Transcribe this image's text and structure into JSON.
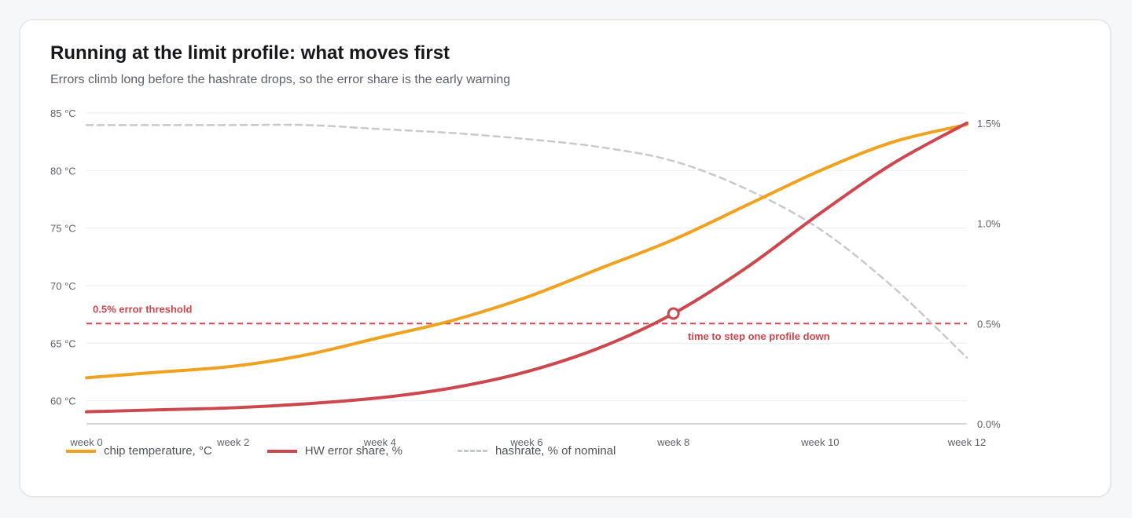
{
  "title": "Running at the limit profile: what moves first",
  "subtitle": "Errors climb long before the hashrate drops, so the error share is the early warning",
  "chart_data": {
    "type": "line",
    "x": [
      0,
      1,
      2,
      3,
      4,
      5,
      6,
      7,
      8,
      9,
      10,
      11,
      12
    ],
    "x_tick_values": [
      0,
      2,
      4,
      6,
      8,
      10,
      12
    ],
    "x_tick_labels": [
      "week 0",
      "week 2",
      "week 4",
      "week 6",
      "week 8",
      "week 10",
      "week 12"
    ],
    "y_left": {
      "ylim": [
        58,
        85
      ],
      "ticks": [
        60,
        65,
        70,
        75,
        80,
        85
      ],
      "tick_labels": [
        "60 °C",
        "65 °C",
        "70 °C",
        "75 °C",
        "80 °C",
        "85 °C"
      ]
    },
    "y_right": {
      "ylim": [
        0,
        1.55
      ],
      "ticks": [
        0,
        0.5,
        1.0,
        1.5
      ],
      "tick_labels": [
        "0.0%",
        "0.5%",
        "1.0%",
        "1.5%"
      ]
    },
    "grid": true,
    "series": [
      {
        "name": "chip temperature, °C",
        "axis": "left",
        "color": "#f0a21f",
        "style": "solid",
        "values": [
          62.0,
          62.5,
          63.0,
          64.0,
          65.5,
          67.0,
          69.0,
          71.5,
          74.0,
          77.0,
          80.0,
          82.5,
          84.0
        ]
      },
      {
        "name": "HW error share, %",
        "axis": "right",
        "color": "#cc474e",
        "style": "solid",
        "values": [
          0.06,
          0.07,
          0.08,
          0.1,
          0.13,
          0.18,
          0.26,
          0.38,
          0.55,
          0.78,
          1.05,
          1.3,
          1.5
        ]
      },
      {
        "name": "hashrate, % of nominal",
        "axis": "right",
        "color": "#c6c9ce",
        "style": "dashed",
        "values": [
          1.49,
          1.49,
          1.49,
          1.49,
          1.47,
          1.45,
          1.42,
          1.38,
          1.31,
          1.17,
          0.97,
          0.68,
          0.33
        ]
      }
    ],
    "threshold": {
      "value": 0.5,
      "axis": "right",
      "label": "0.5% error threshold",
      "color": "#cc474e"
    },
    "marker": {
      "x": 8,
      "value": 0.55,
      "series": "HW error share, %",
      "label": "time to step one profile down"
    }
  }
}
